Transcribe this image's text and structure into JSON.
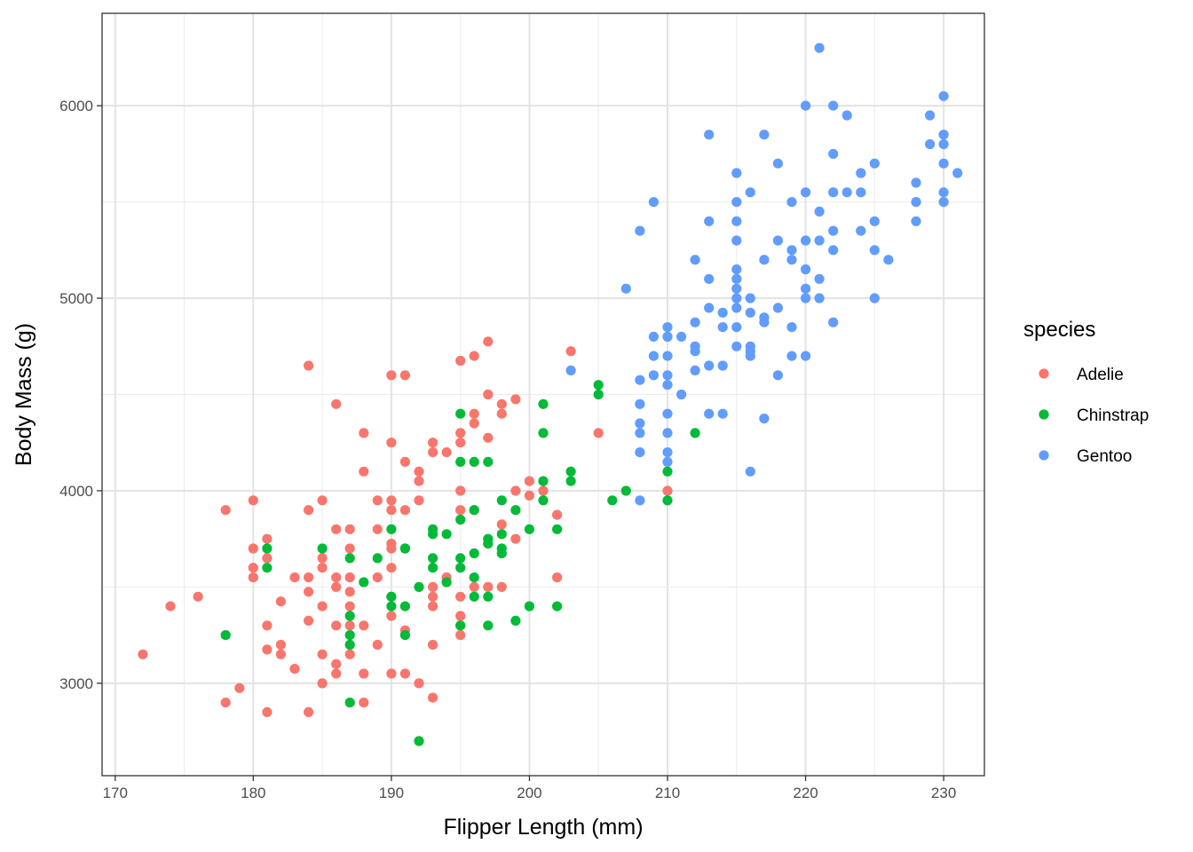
{
  "chart_data": {
    "type": "scatter",
    "xlabel": "Flipper Length (mm)",
    "ylabel": "Body Mass (g)",
    "xlim": [
      169.05,
      232.95
    ],
    "ylim": [
      2520,
      6480
    ],
    "x_ticks": [
      170,
      180,
      190,
      200,
      210,
      220,
      230
    ],
    "x_tick_labels": [
      "170",
      "180",
      "190",
      "200",
      "210",
      "220",
      "230"
    ],
    "y_ticks": [
      3000,
      4000,
      5000,
      6000
    ],
    "y_tick_labels": [
      "3000",
      "4000",
      "5000",
      "6000"
    ],
    "grid": true,
    "legend": {
      "title": "species",
      "position": "right"
    },
    "series": [
      {
        "name": "Adelie",
        "color": "#F8766D",
        "points": [
          [
            172,
            3150
          ],
          [
            174,
            3400
          ],
          [
            176,
            3450
          ],
          [
            178,
            3900
          ],
          [
            178,
            2900
          ],
          [
            179,
            2975
          ],
          [
            180,
            3950
          ],
          [
            180,
            3700
          ],
          [
            180,
            3600
          ],
          [
            180,
            3550
          ],
          [
            181,
            3750
          ],
          [
            181,
            3650
          ],
          [
            181,
            3300
          ],
          [
            181,
            3175
          ],
          [
            181,
            2850
          ],
          [
            182,
            3425
          ],
          [
            182,
            3200
          ],
          [
            182,
            3150
          ],
          [
            183,
            3550
          ],
          [
            183,
            3075
          ],
          [
            184,
            4650
          ],
          [
            184,
            3900
          ],
          [
            184,
            3550
          ],
          [
            184,
            3475
          ],
          [
            184,
            3325
          ],
          [
            184,
            2850
          ],
          [
            185,
            3950
          ],
          [
            185,
            3650
          ],
          [
            185,
            3600
          ],
          [
            185,
            3400
          ],
          [
            185,
            3150
          ],
          [
            185,
            3000
          ],
          [
            186,
            4450
          ],
          [
            186,
            3800
          ],
          [
            186,
            3550
          ],
          [
            186,
            3500
          ],
          [
            186,
            3300
          ],
          [
            186,
            3100
          ],
          [
            186,
            3050
          ],
          [
            187,
            3800
          ],
          [
            187,
            3700
          ],
          [
            187,
            3550
          ],
          [
            187,
            3475
          ],
          [
            187,
            3400
          ],
          [
            187,
            3300
          ],
          [
            187,
            3150
          ],
          [
            188,
            4300
          ],
          [
            188,
            4100
          ],
          [
            188,
            3300
          ],
          [
            188,
            3050
          ],
          [
            188,
            2900
          ],
          [
            189,
            3950
          ],
          [
            189,
            3800
          ],
          [
            189,
            3550
          ],
          [
            189,
            3200
          ],
          [
            190,
            4600
          ],
          [
            190,
            4250
          ],
          [
            190,
            3950
          ],
          [
            190,
            3900
          ],
          [
            190,
            3725
          ],
          [
            190,
            3700
          ],
          [
            190,
            3600
          ],
          [
            190,
            3450
          ],
          [
            190,
            3350
          ],
          [
            190,
            3050
          ],
          [
            191,
            4600
          ],
          [
            191,
            4150
          ],
          [
            191,
            3900
          ],
          [
            191,
            3700
          ],
          [
            191,
            3275
          ],
          [
            191,
            3050
          ],
          [
            192,
            4100
          ],
          [
            192,
            4050
          ],
          [
            192,
            3950
          ],
          [
            192,
            3000
          ],
          [
            193,
            4250
          ],
          [
            193,
            4200
          ],
          [
            193,
            3500
          ],
          [
            193,
            3450
          ],
          [
            193,
            3400
          ],
          [
            193,
            3200
          ],
          [
            193,
            2925
          ],
          [
            194,
            4200
          ],
          [
            194,
            3550
          ],
          [
            195,
            4675
          ],
          [
            195,
            4300
          ],
          [
            195,
            4250
          ],
          [
            195,
            4000
          ],
          [
            195,
            3900
          ],
          [
            195,
            3450
          ],
          [
            195,
            3350
          ],
          [
            195,
            3300
          ],
          [
            195,
            3250
          ],
          [
            196,
            4700
          ],
          [
            196,
            4400
          ],
          [
            196,
            4350
          ],
          [
            196,
            3900
          ],
          [
            196,
            3500
          ],
          [
            197,
            4775
          ],
          [
            197,
            4500
          ],
          [
            197,
            4275
          ],
          [
            197,
            3500
          ],
          [
            198,
            4450
          ],
          [
            198,
            4400
          ],
          [
            198,
            3825
          ],
          [
            198,
            3500
          ],
          [
            199,
            4475
          ],
          [
            199,
            4000
          ],
          [
            199,
            3750
          ],
          [
            200,
            4050
          ],
          [
            200,
            3975
          ],
          [
            201,
            4000
          ],
          [
            202,
            3875
          ],
          [
            202,
            3550
          ],
          [
            203,
            4725
          ],
          [
            205,
            4300
          ],
          [
            210,
            4000
          ]
        ]
      },
      {
        "name": "Chinstrap",
        "color": "#00BA38",
        "points": [
          [
            178,
            3250
          ],
          [
            181,
            3700
          ],
          [
            181,
            3600
          ],
          [
            185,
            3700
          ],
          [
            187,
            3650
          ],
          [
            187,
            3350
          ],
          [
            187,
            3250
          ],
          [
            187,
            3200
          ],
          [
            187,
            2900
          ],
          [
            188,
            3525
          ],
          [
            189,
            3650
          ],
          [
            190,
            3800
          ],
          [
            190,
            3450
          ],
          [
            190,
            3400
          ],
          [
            191,
            3700
          ],
          [
            191,
            3400
          ],
          [
            191,
            3250
          ],
          [
            192,
            3500
          ],
          [
            192,
            2700
          ],
          [
            193,
            3800
          ],
          [
            193,
            3775
          ],
          [
            193,
            3650
          ],
          [
            193,
            3600
          ],
          [
            194,
            3775
          ],
          [
            194,
            3525
          ],
          [
            195,
            4400
          ],
          [
            195,
            4150
          ],
          [
            195,
            3850
          ],
          [
            195,
            3650
          ],
          [
            195,
            3600
          ],
          [
            195,
            3300
          ],
          [
            196,
            4150
          ],
          [
            196,
            3900
          ],
          [
            196,
            3675
          ],
          [
            196,
            3550
          ],
          [
            196,
            3450
          ],
          [
            197,
            4150
          ],
          [
            197,
            3750
          ],
          [
            197,
            3725
          ],
          [
            197,
            3450
          ],
          [
            197,
            3300
          ],
          [
            198,
            3950
          ],
          [
            198,
            3775
          ],
          [
            198,
            3700
          ],
          [
            198,
            3675
          ],
          [
            199,
            3900
          ],
          [
            199,
            3325
          ],
          [
            200,
            3800
          ],
          [
            200,
            3400
          ],
          [
            201,
            4450
          ],
          [
            201,
            4300
          ],
          [
            201,
            4050
          ],
          [
            201,
            3950
          ],
          [
            202,
            3800
          ],
          [
            202,
            3400
          ],
          [
            203,
            4100
          ],
          [
            203,
            4050
          ],
          [
            205,
            4550
          ],
          [
            205,
            4500
          ],
          [
            206,
            3950
          ],
          [
            207,
            4000
          ],
          [
            210,
            4800
          ],
          [
            210,
            4100
          ],
          [
            210,
            3950
          ],
          [
            212,
            4300
          ]
        ]
      },
      {
        "name": "Gentoo",
        "color": "#619CFF",
        "points": [
          [
            203,
            4625
          ],
          [
            207,
            5050
          ],
          [
            208,
            5350
          ],
          [
            208,
            4575
          ],
          [
            208,
            4450
          ],
          [
            208,
            4350
          ],
          [
            208,
            4300
          ],
          [
            208,
            4200
          ],
          [
            208,
            3950
          ],
          [
            209,
            5500
          ],
          [
            209,
            4800
          ],
          [
            209,
            4700
          ],
          [
            209,
            4600
          ],
          [
            210,
            4850
          ],
          [
            210,
            4800
          ],
          [
            210,
            4700
          ],
          [
            210,
            4600
          ],
          [
            210,
            4550
          ],
          [
            210,
            4400
          ],
          [
            210,
            4300
          ],
          [
            210,
            4200
          ],
          [
            210,
            4150
          ],
          [
            211,
            4800
          ],
          [
            211,
            4500
          ],
          [
            212,
            5200
          ],
          [
            212,
            4875
          ],
          [
            212,
            4750
          ],
          [
            212,
            4725
          ],
          [
            212,
            4625
          ],
          [
            213,
            5850
          ],
          [
            213,
            5400
          ],
          [
            213,
            5100
          ],
          [
            213,
            4950
          ],
          [
            213,
            4650
          ],
          [
            213,
            4400
          ],
          [
            214,
            4925
          ],
          [
            214,
            4850
          ],
          [
            214,
            4650
          ],
          [
            214,
            4400
          ],
          [
            215,
            5650
          ],
          [
            215,
            5500
          ],
          [
            215,
            5400
          ],
          [
            215,
            5300
          ],
          [
            215,
            5150
          ],
          [
            215,
            5100
          ],
          [
            215,
            5050
          ],
          [
            215,
            5000
          ],
          [
            215,
            4950
          ],
          [
            215,
            4850
          ],
          [
            215,
            4750
          ],
          [
            216,
            5550
          ],
          [
            216,
            5000
          ],
          [
            216,
            4925
          ],
          [
            216,
            4750
          ],
          [
            216,
            4725
          ],
          [
            216,
            4700
          ],
          [
            216,
            4100
          ],
          [
            217,
            5850
          ],
          [
            217,
            5200
          ],
          [
            217,
            4900
          ],
          [
            217,
            4875
          ],
          [
            217,
            4375
          ],
          [
            218,
            5700
          ],
          [
            218,
            5300
          ],
          [
            218,
            4950
          ],
          [
            218,
            4600
          ],
          [
            219,
            5500
          ],
          [
            219,
            5250
          ],
          [
            219,
            5200
          ],
          [
            219,
            4850
          ],
          [
            219,
            4700
          ],
          [
            220,
            6000
          ],
          [
            220,
            5550
          ],
          [
            220,
            5300
          ],
          [
            220,
            5150
          ],
          [
            220,
            5050
          ],
          [
            220,
            5000
          ],
          [
            220,
            4700
          ],
          [
            221,
            6300
          ],
          [
            221,
            5450
          ],
          [
            221,
            5300
          ],
          [
            221,
            5100
          ],
          [
            221,
            5000
          ],
          [
            222,
            6000
          ],
          [
            222,
            5750
          ],
          [
            222,
            5550
          ],
          [
            222,
            5350
          ],
          [
            222,
            5250
          ],
          [
            222,
            4875
          ],
          [
            223,
            5950
          ],
          [
            223,
            5550
          ],
          [
            224,
            5650
          ],
          [
            224,
            5550
          ],
          [
            224,
            5350
          ],
          [
            225,
            5700
          ],
          [
            225,
            5400
          ],
          [
            225,
            5250
          ],
          [
            225,
            5000
          ],
          [
            226,
            5200
          ],
          [
            228,
            5600
          ],
          [
            228,
            5500
          ],
          [
            228,
            5400
          ],
          [
            229,
            5950
          ],
          [
            229,
            5800
          ],
          [
            230,
            6050
          ],
          [
            230,
            5850
          ],
          [
            230,
            5800
          ],
          [
            230,
            5700
          ],
          [
            230,
            5550
          ],
          [
            230,
            5500
          ],
          [
            231,
            5650
          ]
        ]
      }
    ]
  }
}
